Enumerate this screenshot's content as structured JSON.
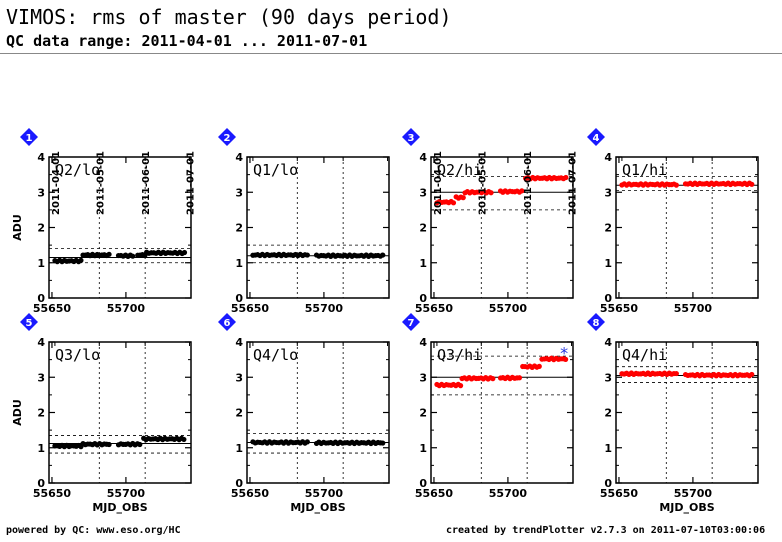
{
  "title": "VIMOS: rms of master (90 days period)",
  "subtitle": "QC data range: 2011-04-01 ... 2011-07-01",
  "footer_left": "powered by QC: www.eso.org/HC",
  "footer_right": "created by trendPlotter v2.7.3 on 2011-07-10T03:00:06",
  "colors": {
    "lo": "#000000",
    "hi": "#ff0000",
    "outlier": "#2233dd",
    "badge": "#1a1aff"
  },
  "chart_data": [
    {
      "type": "scatter",
      "panel": 1,
      "label": "Q2/lo",
      "color": "black",
      "ylabel": "ADU",
      "xlabel": "",
      "ylim": [
        0,
        4
      ],
      "xlim": [
        55648,
        55744
      ],
      "xticks": [
        55650,
        55700
      ],
      "date_ticks": [
        "2011-04-01",
        "2011-05-01",
        "2011-06-01",
        "2011-07-01"
      ],
      "mean": 1.15,
      "band": [
        1.0,
        1.4
      ],
      "segments": [
        {
          "x": [
            55652,
            55670
          ],
          "y": 1.05
        },
        {
          "x": [
            55671,
            55690
          ],
          "y": 1.22
        },
        {
          "x": [
            55695,
            55706
          ],
          "y": 1.2
        },
        {
          "x": [
            55708,
            55713
          ],
          "y": 1.22
        },
        {
          "x": [
            55714,
            55740
          ],
          "y": 1.28
        }
      ]
    },
    {
      "type": "scatter",
      "panel": 2,
      "label": "Q1/lo",
      "color": "black",
      "ylabel": "",
      "xlabel": "",
      "ylim": [
        0,
        4
      ],
      "xlim": [
        55648,
        55744
      ],
      "xticks": [
        55650,
        55700
      ],
      "date_ticks": [],
      "mean": 1.2,
      "band": [
        1.0,
        1.5
      ],
      "segments": [
        {
          "x": [
            55652,
            55690
          ],
          "y": 1.22
        },
        {
          "x": [
            55695,
            55740
          ],
          "y": 1.2
        }
      ]
    },
    {
      "type": "scatter",
      "panel": 3,
      "label": "Q2/hi",
      "color": "red",
      "ylabel": "",
      "xlabel": "",
      "ylim": [
        0,
        4
      ],
      "xlim": [
        55648,
        55744
      ],
      "xticks": [
        55650,
        55700
      ],
      "date_ticks": [
        "2011-04-01",
        "2011-05-01",
        "2011-06-01",
        "2011-07-01"
      ],
      "mean": 3.0,
      "band": [
        2.5,
        3.45
      ],
      "segments": [
        {
          "x": [
            55652,
            55664
          ],
          "y": 2.72
        },
        {
          "x": [
            55665,
            55670
          ],
          "y": 2.85
        },
        {
          "x": [
            55671,
            55690
          ],
          "y": 3.0
        },
        {
          "x": [
            55695,
            55710
          ],
          "y": 3.02
        },
        {
          "x": [
            55712,
            55740
          ],
          "y": 3.4
        }
      ]
    },
    {
      "type": "scatter",
      "panel": 4,
      "label": "Q1/hi",
      "color": "red",
      "ylabel": "",
      "xlabel": "",
      "ylim": [
        0,
        4
      ],
      "xlim": [
        55648,
        55744
      ],
      "xticks": [
        55650,
        55700
      ],
      "date_ticks": [],
      "mean": 3.2,
      "band": [
        3.05,
        3.45
      ],
      "segments": [
        {
          "x": [
            55652,
            55690
          ],
          "y": 3.22
        },
        {
          "x": [
            55695,
            55740
          ],
          "y": 3.24
        }
      ]
    },
    {
      "type": "scatter",
      "panel": 5,
      "label": "Q3/lo",
      "color": "black",
      "ylabel": "ADU",
      "xlabel": "MJD_OBS",
      "ylim": [
        0,
        4
      ],
      "xlim": [
        55648,
        55744
      ],
      "xticks": [
        55650,
        55700
      ],
      "date_ticks": [],
      "mean": 1.12,
      "band": [
        0.85,
        1.35
      ],
      "segments": [
        {
          "x": [
            55652,
            55670
          ],
          "y": 1.05
        },
        {
          "x": [
            55671,
            55690
          ],
          "y": 1.1
        },
        {
          "x": [
            55695,
            55710
          ],
          "y": 1.1
        },
        {
          "x": [
            55712,
            55740
          ],
          "y": 1.25
        }
      ]
    },
    {
      "type": "scatter",
      "panel": 6,
      "label": "Q4/lo",
      "color": "black",
      "ylabel": "",
      "xlabel": "MJD_OBS",
      "ylim": [
        0,
        4
      ],
      "xlim": [
        55648,
        55744
      ],
      "xticks": [
        55650,
        55700
      ],
      "date_ticks": [],
      "mean": 1.15,
      "band": [
        0.85,
        1.4
      ],
      "segments": [
        {
          "x": [
            55652,
            55690
          ],
          "y": 1.15
        },
        {
          "x": [
            55695,
            55740
          ],
          "y": 1.14
        }
      ]
    },
    {
      "type": "scatter",
      "panel": 7,
      "label": "Q3/hi",
      "color": "red",
      "ylabel": "",
      "xlabel": "",
      "ylim": [
        0,
        4
      ],
      "xlim": [
        55648,
        55744
      ],
      "xticks": [
        55650,
        55700
      ],
      "date_ticks": [],
      "mean": 3.0,
      "band": [
        2.5,
        3.6
      ],
      "segments": [
        {
          "x": [
            55652,
            55668
          ],
          "y": 2.78
        },
        {
          "x": [
            55669,
            55690
          ],
          "y": 2.97
        },
        {
          "x": [
            55695,
            55708
          ],
          "y": 2.98
        },
        {
          "x": [
            55710,
            55722
          ],
          "y": 3.3
        },
        {
          "x": [
            55723,
            55740
          ],
          "y": 3.52
        }
      ],
      "outliers": [
        {
          "x": 55738,
          "y": 3.68
        }
      ]
    },
    {
      "type": "scatter",
      "panel": 8,
      "label": "Q4/hi",
      "color": "red",
      "ylabel": "",
      "xlabel": "MJD_OBS",
      "ylim": [
        0,
        4
      ],
      "xlim": [
        55648,
        55744
      ],
      "xticks": [
        55650,
        55700
      ],
      "date_ticks": [],
      "mean": 3.05,
      "band": [
        2.85,
        3.3
      ],
      "segments": [
        {
          "x": [
            55652,
            55690
          ],
          "y": 3.1
        },
        {
          "x": [
            55695,
            55740
          ],
          "y": 3.06
        }
      ]
    }
  ]
}
